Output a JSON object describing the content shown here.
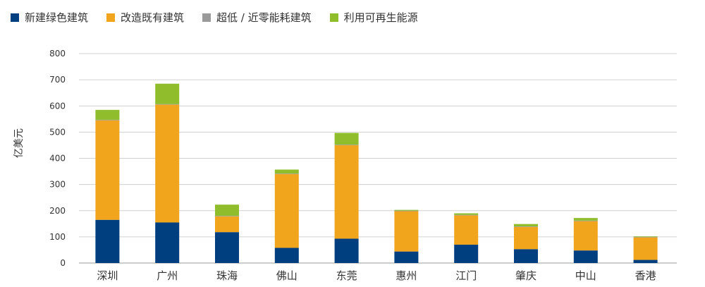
{
  "chart_data": {
    "type": "bar",
    "stacked": true,
    "ylabel": "亿美元",
    "ylim": [
      0,
      800
    ],
    "yticks": [
      0,
      100,
      200,
      300,
      400,
      500,
      600,
      700,
      800
    ],
    "grid": true,
    "legend_position": "top-left",
    "categories": [
      "深圳",
      "广州",
      "珠海",
      "佛山",
      "东莞",
      "惠州",
      "江门",
      "肇庆",
      "中山",
      "香港"
    ],
    "series": [
      {
        "name": "新建绿色建筑",
        "color": "#003f7f",
        "values": [
          165,
          155,
          118,
          58,
          93,
          44,
          70,
          53,
          48,
          12
        ]
      },
      {
        "name": "改造既有建筑",
        "color": "#f0a51c",
        "values": [
          380,
          450,
          60,
          282,
          357,
          154,
          112,
          85,
          112,
          86
        ]
      },
      {
        "name": "超低 / 近零能耗建筑",
        "color": "#9a9a9a",
        "values": [
          2,
          2,
          2,
          2,
          2,
          2,
          2,
          2,
          2,
          2
        ]
      },
      {
        "name": "利用可再生能源",
        "color": "#8fbd2c",
        "values": [
          38,
          78,
          43,
          15,
          45,
          3,
          6,
          9,
          10,
          2
        ]
      }
    ]
  }
}
